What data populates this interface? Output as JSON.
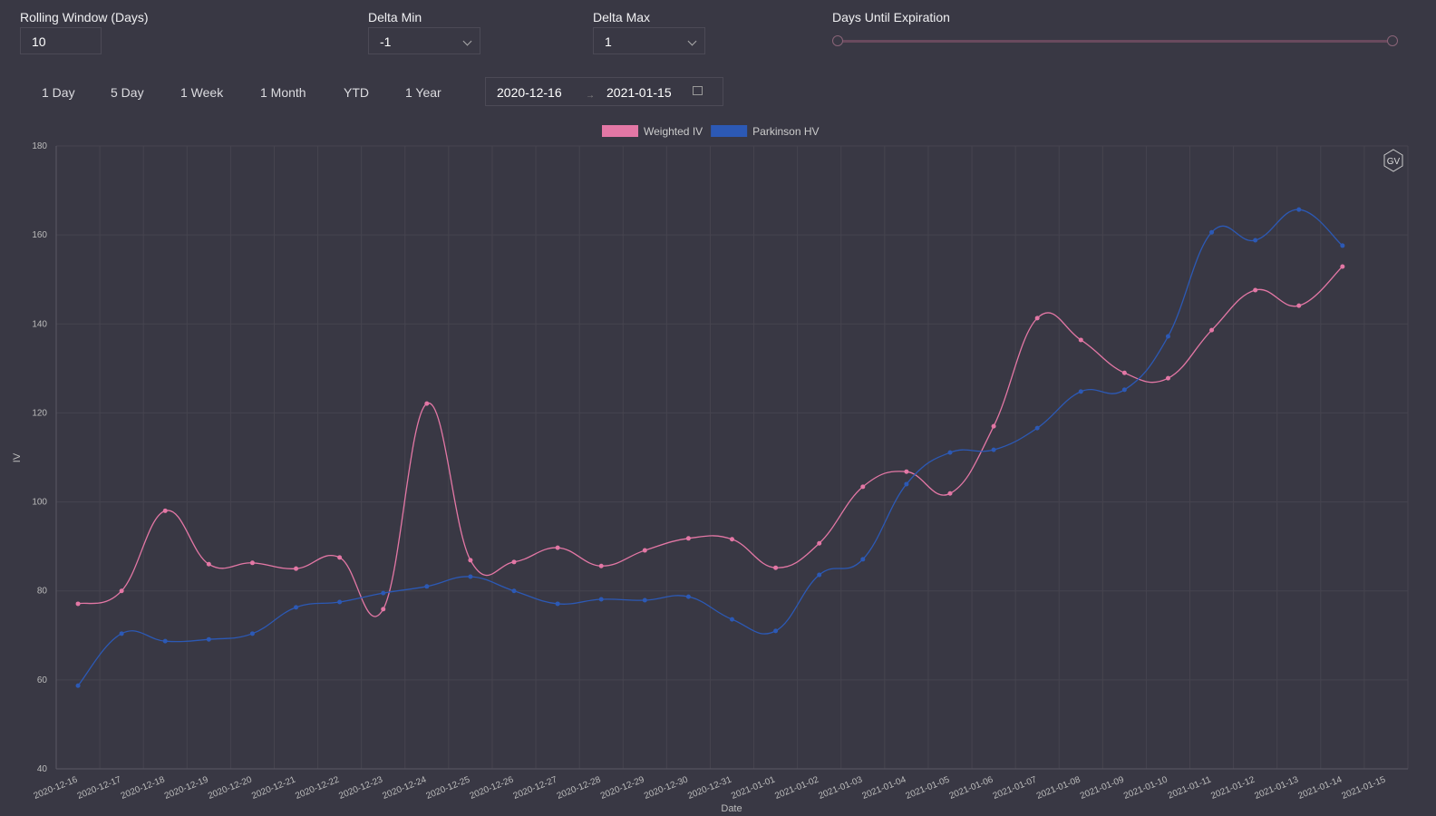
{
  "filters": [
    {
      "label": "Rolling Window (Days)",
      "value": "10"
    },
    {
      "label": "Delta Min",
      "value": "-1"
    },
    {
      "label": "Delta Max",
      "value": "1"
    },
    {
      "label": "Days Until Expiration"
    }
  ],
  "range_buttons": [
    "1 Day",
    "5 Day",
    "1 Week",
    "1 Month",
    "YTD",
    "1 Year"
  ],
  "date_range": {
    "start": "2020-12-16",
    "end": "2021-01-15"
  },
  "badge": "GV",
  "chart_data": {
    "type": "line",
    "x_label": "Date",
    "y_label": "IV",
    "categories": [
      "2020-12-16",
      "2020-12-17",
      "2020-12-18",
      "2020-12-19",
      "2020-12-20",
      "2020-12-21",
      "2020-12-22",
      "2020-12-23",
      "2020-12-24",
      "2020-12-25",
      "2020-12-26",
      "2020-12-27",
      "2020-12-28",
      "2020-12-29",
      "2020-12-30",
      "2020-12-31",
      "2021-01-01",
      "2021-01-02",
      "2021-01-03",
      "2021-01-04",
      "2021-01-05",
      "2021-01-06",
      "2021-01-07",
      "2021-01-08",
      "2021-01-09",
      "2021-01-10",
      "2021-01-11",
      "2021-01-12",
      "2021-01-13",
      "2021-01-14",
      "2021-01-15"
    ],
    "series": [
      {
        "name": "Weighted IV",
        "color": "#e377a5",
        "values": [
          77.1,
          80,
          98,
          86,
          86.3,
          85,
          87.5,
          75.9,
          122.1,
          86.9,
          86.5,
          89.7,
          85.6,
          89.1,
          91.8,
          91.6,
          85.2,
          90.7,
          103.4,
          106.8,
          101.9,
          117,
          141.3,
          136.4,
          129,
          127.8,
          138.6,
          147.6,
          144.1,
          152.9,
          null
        ]
      },
      {
        "name": "Parkinson HV",
        "color": "#2c59b5",
        "values": [
          58.7,
          70.4,
          68.7,
          69.1,
          70.4,
          76.3,
          77.5,
          79.5,
          81,
          83.2,
          80,
          77.1,
          78.1,
          77.9,
          78.7,
          73.6,
          71,
          83.6,
          87.1,
          104,
          111.1,
          111.7,
          116.6,
          124.8,
          125.2,
          137.2,
          160.6,
          158.8,
          165.7,
          157.6,
          null
        ]
      }
    ],
    "ylim": [
      40,
      180
    ],
    "yticks": [
      40,
      60,
      80,
      100,
      120,
      140,
      160,
      180
    ],
    "grid": true,
    "legend": "top"
  }
}
